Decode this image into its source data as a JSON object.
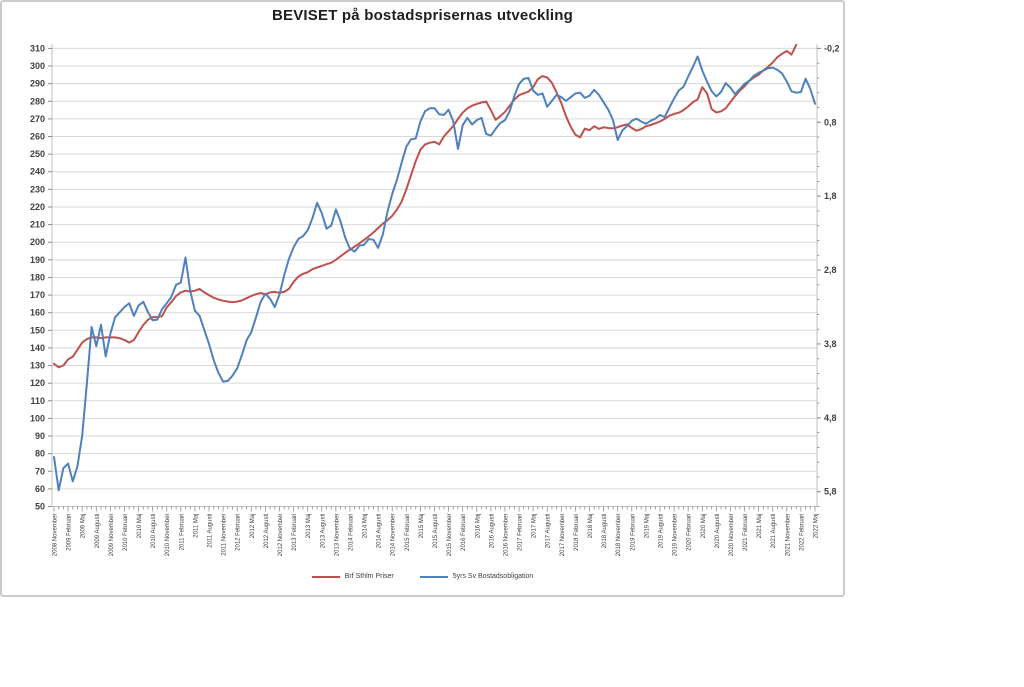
{
  "chart": {
    "style": {
      "background": "#ffffff",
      "frame_border": "#cbcbcb",
      "gridline": "#d9d9d9",
      "axis_line": "#bfbfbf",
      "tick": "#8c8c8c",
      "axis_label_color": "#404040",
      "title_color": "#1f1f1f",
      "red": "#C0504D",
      "blue": "#4F81BD"
    }
  },
  "chart_data": {
    "type": "line",
    "title": "BEVISET på bostadsprisernas utveckling",
    "legend_position": "bottom",
    "grid": "horizontal",
    "x_axis": {
      "total_points": 163,
      "months_per_label": 3,
      "labels": [
        "2008 November",
        "2009 Februari",
        "2009 Maj",
        "2009 Augusti",
        "2009 November",
        "2010 Februari",
        "2010 Maj",
        "2010 Augusti",
        "2010 November",
        "2011 Februari",
        "2011 Maj",
        "2011 Augusti",
        "2011 November",
        "2012 Februari",
        "2012 Maj",
        "2012 Augusti",
        "2012 November",
        "2013 Februari",
        "2013 Maj",
        "2013 Augusti",
        "2013 November",
        "2014 Februari",
        "2014 Maj",
        "2014 Augusti",
        "2014 November",
        "2015 Februari",
        "2015 Maj",
        "2015 Augusti",
        "2015 November",
        "2016 Februari",
        "2016 Maj",
        "2016 Augusti",
        "2016 November",
        "2017 Februari",
        "2017 Maj",
        "2017 Augusti",
        "2017 November",
        "2018 Februari",
        "2018 Maj",
        "2018 Augusti",
        "2018 November",
        "2019 Februari",
        "2019 Maj",
        "2019 Augusti",
        "2019 November",
        "2020 Februari",
        "2020 Maj",
        "2020 Augusti",
        "2020 November",
        "2021 Februari",
        "2021 Maj",
        "2021 Augusti",
        "2021 November",
        "2022 Februari",
        "2022 Maj"
      ]
    },
    "y_left": {
      "min": 50,
      "max": 310,
      "step": 10,
      "labels": [
        310,
        300,
        290,
        280,
        270,
        260,
        250,
        240,
        230,
        220,
        210,
        200,
        190,
        180,
        170,
        160,
        150,
        140,
        130,
        120,
        110,
        100,
        90,
        80,
        70,
        60,
        50
      ]
    },
    "y_right": {
      "min": -0.2,
      "max": 6.0,
      "step": 1.0,
      "inverted": true,
      "minor_step": 0.2,
      "labels": [
        "-0,2",
        "0,8",
        "1,8",
        "2,8",
        "3,8",
        "4,8",
        "5,8"
      ],
      "label_values": [
        -0.2,
        0.8,
        1.8,
        2.8,
        3.8,
        4.8,
        5.8
      ]
    },
    "series": [
      {
        "name": "Brf Sthlm Priser",
        "axis": "left",
        "color": "#C0504D",
        "start_month_index": 0,
        "values": [
          131,
          129,
          130,
          133.5,
          135,
          139,
          143,
          145,
          146,
          146,
          145.5,
          146,
          146,
          146,
          145.5,
          144.5,
          143,
          144.5,
          149,
          153,
          156,
          157.5,
          157.5,
          158,
          163,
          166,
          169.5,
          171.5,
          172.5,
          172,
          172.5,
          173.5,
          171.5,
          170,
          168.5,
          167.5,
          166.8,
          166.3,
          166,
          166.3,
          167,
          168.2,
          169.5,
          170.5,
          171.2,
          170.3,
          171.5,
          171.8,
          171.3,
          171.8,
          173.5,
          177.5,
          180.5,
          182,
          183,
          184.7,
          185.7,
          186.5,
          187.5,
          188.3,
          190,
          192,
          194,
          195.8,
          197.5,
          199.3,
          201.3,
          203.3,
          205.5,
          208,
          210.5,
          212.5,
          215,
          218.5,
          223,
          230,
          238,
          246,
          252.5,
          255.5,
          256.5,
          257,
          255.5,
          260,
          263,
          266,
          270,
          273.5,
          276,
          277.5,
          278.5,
          279.3,
          279.8,
          275,
          269.5,
          271.5,
          274,
          277.5,
          281,
          283.5,
          284.5,
          285.5,
          288,
          292.5,
          294.3,
          293.5,
          290.5,
          285,
          279,
          271.5,
          265.5,
          261,
          259.5,
          264.5,
          263.5,
          265.8,
          264.3,
          265.2,
          264.8,
          264.6,
          265.3,
          266.2,
          266.9,
          264.8,
          263.3,
          264.2,
          265.8,
          266.5,
          267.5,
          268.5,
          270,
          271.8,
          272.8,
          273.5,
          275,
          277,
          279.5,
          281,
          288,
          284.5,
          275.5,
          273.6,
          274.3,
          276,
          279.5,
          283,
          286,
          288.5,
          291.5,
          293.5,
          295,
          297.5,
          299.5,
          302,
          305,
          307,
          308.5,
          306.5,
          312
        ]
      },
      {
        "name": "5yrs Sv Bostadsobligation",
        "axis": "right",
        "color": "#4F81BD",
        "start_month_index": 0,
        "values": [
          5.33,
          5.78,
          5.48,
          5.42,
          5.66,
          5.45,
          5.04,
          4.33,
          3.57,
          3.83,
          3.54,
          3.97,
          3.66,
          3.44,
          3.37,
          3.3,
          3.25,
          3.42,
          3.28,
          3.23,
          3.37,
          3.48,
          3.47,
          3.33,
          3.25,
          3.16,
          3.0,
          2.97,
          2.63,
          3.08,
          3.35,
          3.42,
          3.61,
          3.8,
          4.02,
          4.19,
          4.31,
          4.3,
          4.23,
          4.13,
          3.95,
          3.75,
          3.64,
          3.44,
          3.23,
          3.12,
          3.19,
          3.3,
          3.13,
          2.87,
          2.65,
          2.49,
          2.38,
          2.34,
          2.26,
          2.1,
          1.89,
          2.03,
          2.24,
          2.2,
          1.98,
          2.14,
          2.36,
          2.51,
          2.55,
          2.47,
          2.46,
          2.38,
          2.39,
          2.5,
          2.32,
          2.01,
          1.77,
          1.58,
          1.35,
          1.13,
          1.03,
          1.02,
          0.79,
          0.65,
          0.61,
          0.61,
          0.69,
          0.7,
          0.63,
          0.79,
          1.16,
          0.84,
          0.74,
          0.83,
          0.77,
          0.74,
          0.96,
          0.98,
          0.89,
          0.81,
          0.77,
          0.65,
          0.44,
          0.28,
          0.21,
          0.2,
          0.37,
          0.43,
          0.41,
          0.59,
          0.51,
          0.43,
          0.46,
          0.51,
          0.46,
          0.41,
          0.4,
          0.47,
          0.44,
          0.36,
          0.43,
          0.53,
          0.63,
          0.77,
          1.04,
          0.91,
          0.85,
          0.78,
          0.75,
          0.79,
          0.82,
          0.78,
          0.75,
          0.7,
          0.73,
          0.6,
          0.48,
          0.37,
          0.32,
          0.18,
          0.05,
          -0.09,
          0.1,
          0.25,
          0.38,
          0.45,
          0.39,
          0.27,
          0.33,
          0.42,
          0.35,
          0.28,
          0.24,
          0.17,
          0.13,
          0.1,
          0.07,
          0.06,
          0.09,
          0.14,
          0.25,
          0.38,
          0.4,
          0.39,
          0.21,
          0.35,
          0.55
        ]
      }
    ]
  }
}
